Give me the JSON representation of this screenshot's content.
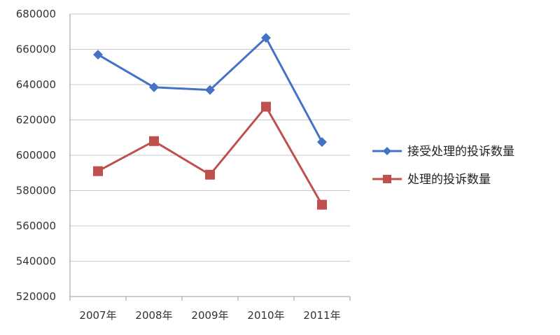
{
  "chart_data": {
    "type": "line",
    "categories": [
      "2007年",
      "2008年",
      "2009年",
      "2010年",
      "2011年"
    ],
    "series": [
      {
        "name": "接受处理的投诉数量",
        "values": [
          657000,
          638500,
          637000,
          666500,
          607500
        ],
        "color": "#4472C4",
        "marker": "diamond"
      },
      {
        "name": "处理的投诉数量",
        "values": [
          591000,
          608000,
          589000,
          627500,
          572000
        ],
        "color": "#C0504D",
        "marker": "square"
      }
    ],
    "title": "",
    "xlabel": "",
    "ylabel": "",
    "ylim": [
      520000,
      680000
    ],
    "ytick_step": 20000,
    "yticks": [
      "520000",
      "540000",
      "560000",
      "580000",
      "600000",
      "620000",
      "640000",
      "660000",
      "680000"
    ],
    "grid": true,
    "legend_position": "right"
  }
}
